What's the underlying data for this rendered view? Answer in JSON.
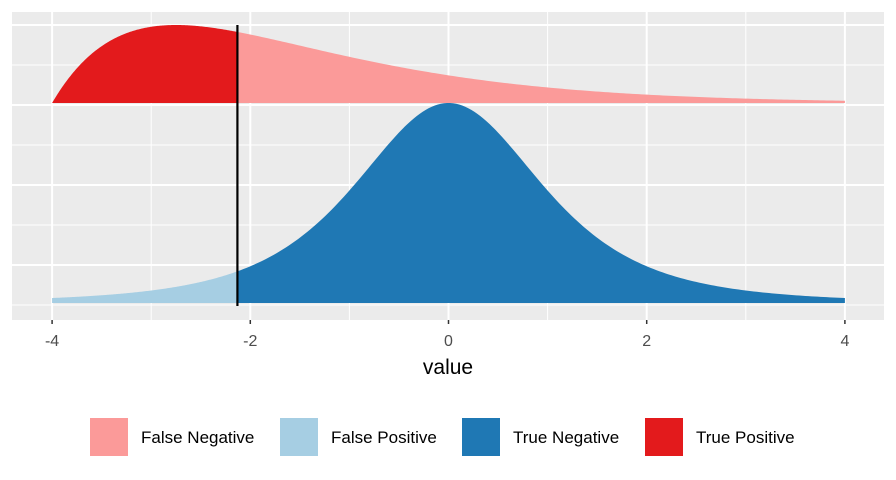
{
  "chart_data": {
    "type": "area",
    "xlabel": "value",
    "ylabel": "",
    "xlim": [
      -4,
      4
    ],
    "x_ticks": [
      "-4",
      "-2",
      "0",
      "2",
      "4"
    ],
    "x_tick_values": [
      -4,
      -2,
      0,
      2,
      4
    ],
    "grid": true,
    "threshold": -2.13,
    "distributions": [
      {
        "group": "positive",
        "shape": "shifted gamma",
        "gamma_shape": 2,
        "gamma_scale": 1.25,
        "shift": -4,
        "below_threshold": "True Positive",
        "above_threshold": "False Negative"
      },
      {
        "group": "negative",
        "shape": "student-t",
        "df": 3,
        "center": 0,
        "below_threshold": "False Positive",
        "above_threshold": "True Negative"
      }
    ],
    "legend": {
      "position": "bottom",
      "entries": [
        {
          "label": "False Negative",
          "color": "#FB9A99"
        },
        {
          "label": "False Positive",
          "color": "#A6CEE3"
        },
        {
          "label": "True Negative",
          "color": "#1F78B4"
        },
        {
          "label": "True Positive",
          "color": "#E31A1C"
        }
      ]
    }
  }
}
